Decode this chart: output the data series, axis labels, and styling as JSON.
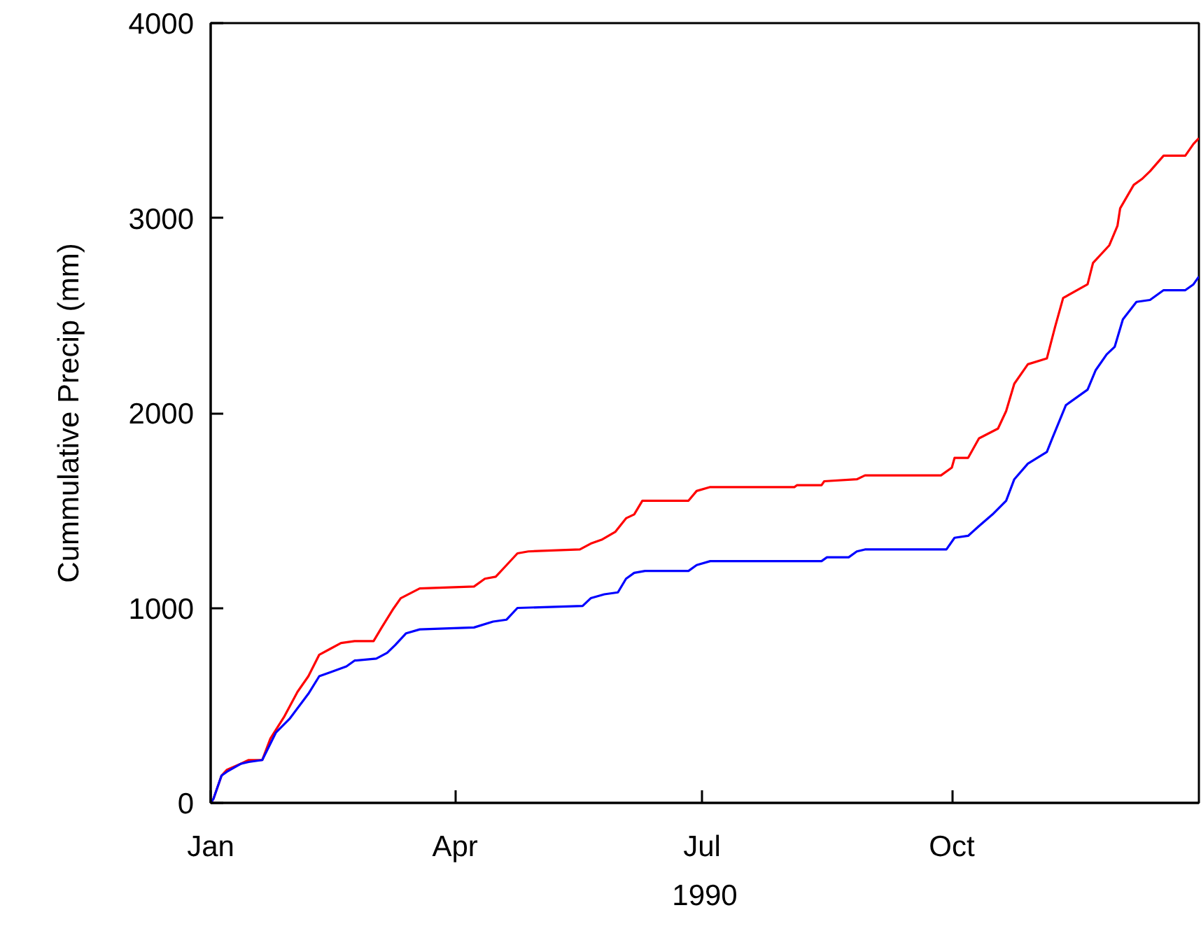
{
  "chart_data": {
    "type": "line",
    "xlabel": "1990",
    "ylabel": "Cummulative Precip (mm)",
    "xlim": [
      "1990-01-01",
      "1990-12-31"
    ],
    "ylim": [
      0,
      4000
    ],
    "xticks": [
      {
        "value": "1990-01-01",
        "label": "Jan"
      },
      {
        "value": "1990-04-01",
        "label": "Apr"
      },
      {
        "value": "1990-07-01",
        "label": "Jul"
      },
      {
        "value": "1990-10-01",
        "label": "Oct"
      }
    ],
    "yticks": [
      0,
      1000,
      2000,
      3000,
      4000
    ],
    "grid": false,
    "marker": "none",
    "line_style": "solid",
    "series": [
      {
        "color": "#ff0000",
        "x": [
          "1990-01-01",
          "1990-01-02",
          "1990-01-05",
          "1990-01-07",
          "1990-01-12",
          "1990-01-15",
          "1990-01-20",
          "1990-01-23",
          "1990-01-28",
          "1990-02-02",
          "1990-02-06",
          "1990-02-10",
          "1990-02-14",
          "1990-02-18",
          "1990-02-23",
          "1990-03-02",
          "1990-03-05",
          "1990-03-09",
          "1990-03-12",
          "1990-03-19",
          "1990-04-08",
          "1990-04-12",
          "1990-04-16",
          "1990-04-20",
          "1990-04-24",
          "1990-04-28",
          "1990-05-17",
          "1990-05-21",
          "1990-05-25",
          "1990-05-30",
          "1990-06-03",
          "1990-06-06",
          "1990-06-09",
          "1990-06-26",
          "1990-06-29",
          "1990-07-04",
          "1990-08-04",
          "1990-08-05",
          "1990-08-14",
          "1990-08-15",
          "1990-08-27",
          "1990-08-30",
          "1990-09-27",
          "1990-10-01",
          "1990-10-02",
          "1990-10-07",
          "1990-10-11",
          "1990-10-18",
          "1990-10-21",
          "1990-10-24",
          "1990-10-29",
          "1990-11-05",
          "1990-11-08",
          "1990-11-11",
          "1990-11-20",
          "1990-11-22",
          "1990-11-28",
          "1990-12-01",
          "1990-12-02",
          "1990-12-07",
          "1990-12-10",
          "1990-12-13",
          "1990-12-18",
          "1990-12-26",
          "1990-12-29",
          "1990-12-31"
        ],
        "values": [
          0,
          20,
          140,
          170,
          200,
          220,
          220,
          330,
          440,
          570,
          650,
          760,
          790,
          820,
          830,
          830,
          900,
          990,
          1050,
          1100,
          1110,
          1150,
          1160,
          1220,
          1280,
          1290,
          1300,
          1330,
          1350,
          1390,
          1460,
          1480,
          1550,
          1550,
          1600,
          1620,
          1620,
          1630,
          1630,
          1650,
          1660,
          1680,
          1680,
          1720,
          1770,
          1770,
          1870,
          1920,
          2010,
          2150,
          2250,
          2280,
          2440,
          2590,
          2660,
          2770,
          2860,
          2960,
          3050,
          3170,
          3200,
          3240,
          3320,
          3320,
          3380,
          3410
        ]
      },
      {
        "color": "#0000ff",
        "x": [
          "1990-01-01",
          "1990-01-02",
          "1990-01-05",
          "1990-01-07",
          "1990-01-12",
          "1990-01-15",
          "1990-01-20",
          "1990-01-25",
          "1990-01-30",
          "1990-02-06",
          "1990-02-10",
          "1990-02-14",
          "1990-02-20",
          "1990-02-23",
          "1990-03-03",
          "1990-03-07",
          "1990-03-10",
          "1990-03-14",
          "1990-03-19",
          "1990-04-08",
          "1990-04-15",
          "1990-04-20",
          "1990-04-24",
          "1990-05-18",
          "1990-05-21",
          "1990-05-26",
          "1990-05-31",
          "1990-06-03",
          "1990-06-06",
          "1990-06-10",
          "1990-06-26",
          "1990-06-29",
          "1990-07-04",
          "1990-08-14",
          "1990-08-16",
          "1990-08-24",
          "1990-08-27",
          "1990-08-30",
          "1990-09-29",
          "1990-10-02",
          "1990-10-07",
          "1990-10-11",
          "1990-10-16",
          "1990-10-21",
          "1990-10-24",
          "1990-10-29",
          "1990-11-05",
          "1990-11-07",
          "1990-11-12",
          "1990-11-20",
          "1990-11-23",
          "1990-11-27",
          "1990-11-30",
          "1990-12-03",
          "1990-12-08",
          "1990-12-13",
          "1990-12-18",
          "1990-12-26",
          "1990-12-29",
          "1990-12-31"
        ],
        "values": [
          0,
          20,
          140,
          160,
          200,
          210,
          220,
          360,
          430,
          560,
          650,
          670,
          700,
          730,
          740,
          770,
          810,
          870,
          890,
          900,
          930,
          940,
          1000,
          1010,
          1050,
          1070,
          1080,
          1150,
          1180,
          1190,
          1190,
          1220,
          1240,
          1240,
          1260,
          1260,
          1290,
          1300,
          1300,
          1360,
          1370,
          1420,
          1480,
          1550,
          1660,
          1740,
          1800,
          1870,
          2040,
          2120,
          2220,
          2300,
          2340,
          2480,
          2570,
          2580,
          2630,
          2630,
          2660,
          2700
        ]
      }
    ]
  }
}
